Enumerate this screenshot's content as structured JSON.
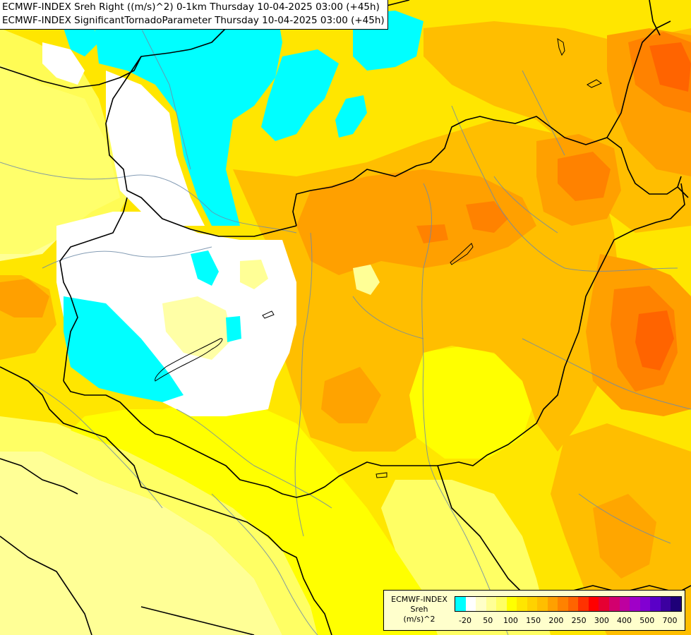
{
  "header": {
    "line1": "ECMWF-INDEX Sreh Right ((m/s)^2) 0-1km Thursday 10-04-2025 03:00 (+45h)",
    "line2": "ECMWF-INDEX SignificantTornadoParameter Thursday 10-04-2025 03:00 (+45h)"
  },
  "legend": {
    "title_line1": "ECMWF-INDEX",
    "title_line2": "Sreh",
    "title_line3": "(m/s)^2",
    "colors": [
      "#00ffff",
      "#ffffff",
      "#ffffc8",
      "#ffff96",
      "#ffff64",
      "#ffff00",
      "#ffe600",
      "#ffd200",
      "#ffbe00",
      "#ffa000",
      "#ff8200",
      "#ff6400",
      "#ff3200",
      "#ff0000",
      "#e60032",
      "#d2006e",
      "#be00a0",
      "#a000c8",
      "#8200d2",
      "#5a00c8",
      "#3c00a0",
      "#1e0078"
    ],
    "ticks": [
      "-20",
      "50",
      "100",
      "150",
      "200",
      "250",
      "300",
      "400",
      "500",
      "700"
    ]
  },
  "map": {
    "region": "Hungary and surroundings",
    "fill_colors": {
      "cyan": "#00ffff",
      "white": "#ffffff",
      "pale": "#ffff96",
      "light_yellow": "#ffff64",
      "yellow": "#ffff00",
      "gold": "#ffe600",
      "amber": "#ffd200",
      "orange_light": "#ffbe00",
      "orange": "#ffa000",
      "orange_dark": "#ff8200",
      "red_orange": "#ff6400"
    }
  }
}
